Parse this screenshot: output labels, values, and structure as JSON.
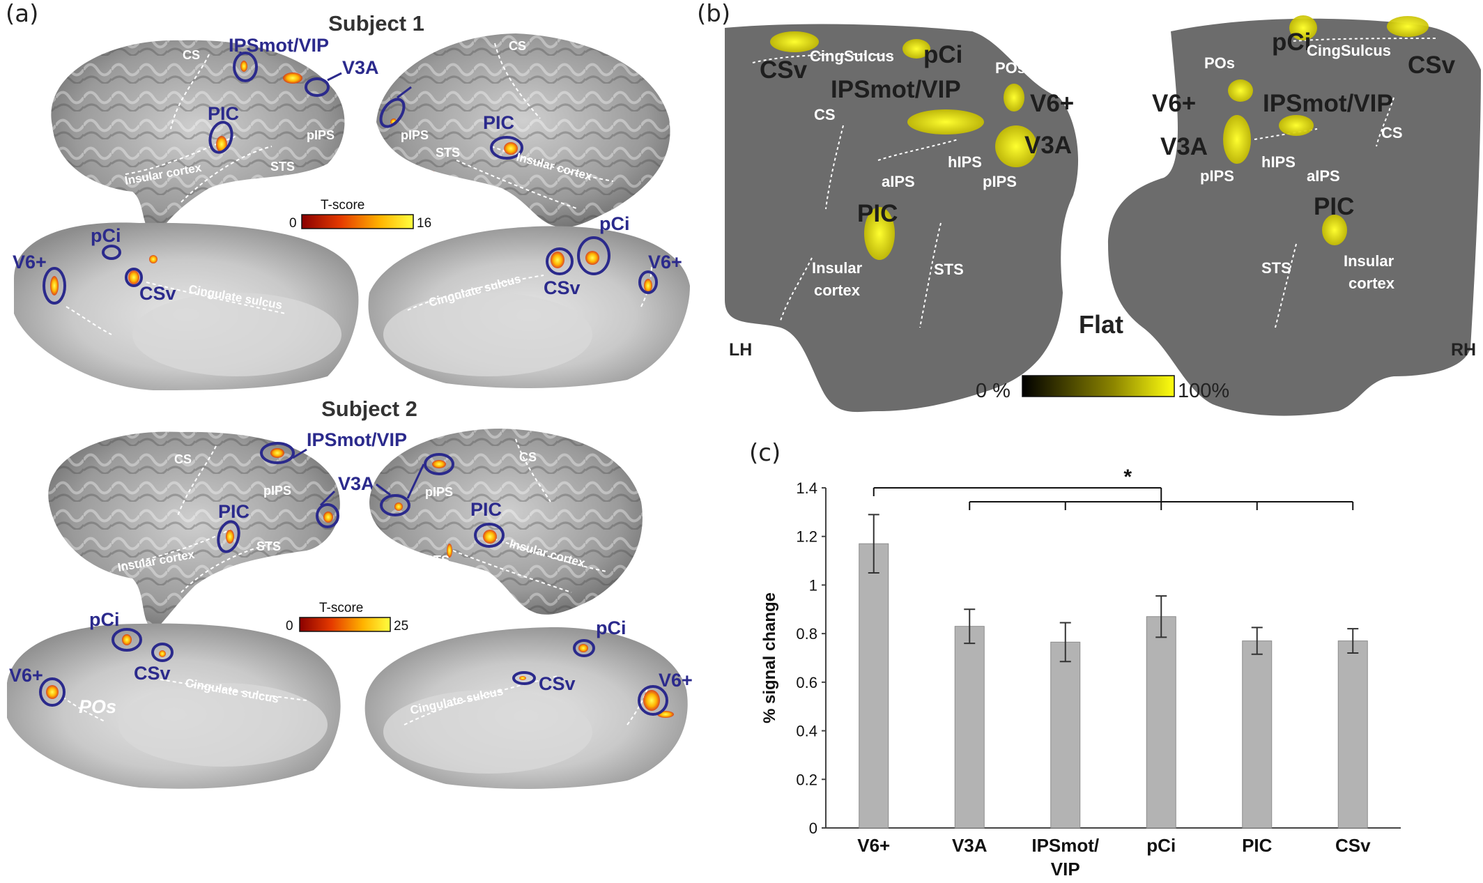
{
  "panels": {
    "a": {
      "letter": "(a)"
    },
    "b": {
      "letter": "(b)"
    },
    "c": {
      "letter": "(c)"
    }
  },
  "subject1": {
    "title": "Subject 1",
    "colorbar": {
      "title": "T-score",
      "min": "0",
      "max": "16"
    },
    "lateral_left": {
      "CS": "CS",
      "pIPS": "pIPS",
      "STS": "STS",
      "insular": "Insular cortex",
      "IPSmot": "IPSmot/VIP",
      "V3A": "V3A",
      "PIC": "PIC"
    },
    "lateral_right": {
      "CS": "CS",
      "pIPS": "pIPS",
      "STS": "STS",
      "insular": "Insular cortex",
      "PIC": "PIC"
    },
    "medial_left": {
      "V6": "V6+",
      "pCi": "pCi",
      "CSv": "CSv",
      "cingulate": "Cingulate sulcus"
    },
    "medial_right": {
      "pCi": "pCi",
      "CSv": "CSv",
      "V6": "V6+",
      "cingulate": "Cingulate sulcus"
    }
  },
  "subject2": {
    "title": "Subject 2",
    "colorbar": {
      "title": "T-score",
      "min": "0",
      "max": "25"
    },
    "lateral_left": {
      "CS": "CS",
      "pIPS": "pIPS",
      "STS": "STS",
      "insular": "Insular cortex",
      "IPSmot": "IPSmot/VIP",
      "V3A": "V3A",
      "PIC": "PIC"
    },
    "lateral_right": {
      "CS": "CS",
      "pIPS": "pIPS",
      "STS": "STS",
      "insular": "Insular cortex",
      "PIC": "PIC"
    },
    "medial_left": {
      "V6": "V6+",
      "pCi": "pCi",
      "CSv": "CSv",
      "POs": "POs",
      "cingulate": "Cingulate sulcus"
    },
    "medial_right": {
      "pCi": "pCi",
      "CSv": "CSv",
      "V6": "V6+",
      "cingulate": "Cingulate sulcus"
    }
  },
  "flatmap": {
    "center_label": "Flat",
    "lh": "LH",
    "rh": "RH",
    "colorbar": {
      "min": "0 %",
      "max": "100%"
    },
    "left": {
      "CSv": "CSv",
      "CingSulcus": "CingSulcus",
      "pCi": "pCi",
      "POs": "POs",
      "IPSmot": "IPSmot/VIP",
      "V6": "V6+",
      "CS": "CS",
      "V3A": "V3A",
      "hIPS": "hIPS",
      "aIPS": "aIPS",
      "pIPS": "pIPS",
      "PIC": "PIC",
      "insular1": "Insular",
      "insular2": "cortex",
      "STS": "STS"
    },
    "right": {
      "pCi": "pCi",
      "CingSulcus": "CingSulcus",
      "CSv": "CSv",
      "POs": "POs",
      "V6": "V6+",
      "IPSmot": "IPSmot/VIP",
      "V3A": "V3A",
      "CS": "CS",
      "pIPS": "pIPS",
      "hIPS": "hIPS",
      "aIPS": "aIPS",
      "PIC": "PIC",
      "insular1": "Insular",
      "insular2": "cortex",
      "STS": "STS"
    }
  },
  "chart_data": {
    "type": "bar",
    "ylabel": "% signal change",
    "xlabel": "",
    "ylim": [
      0,
      1.4
    ],
    "yticks": [
      "0",
      "0.2",
      "0.4",
      "0.6",
      "0.8",
      "1",
      "1.2",
      "1.4"
    ],
    "categories": [
      "V6+",
      "V3A",
      "IPSmot/ VIP",
      "pCi",
      "PIC",
      "CSv"
    ],
    "category_lines": [
      [
        "V6+"
      ],
      [
        "V3A"
      ],
      [
        "IPSmot/",
        "VIP"
      ],
      [
        "pCi"
      ],
      [
        "PIC"
      ],
      [
        "CSv"
      ]
    ],
    "values": [
      1.17,
      0.83,
      0.765,
      0.87,
      0.77,
      0.77
    ],
    "errors": [
      0.12,
      0.07,
      0.08,
      0.085,
      0.055,
      0.05
    ],
    "significance": "*",
    "bar_color": "#b3b3b3"
  }
}
